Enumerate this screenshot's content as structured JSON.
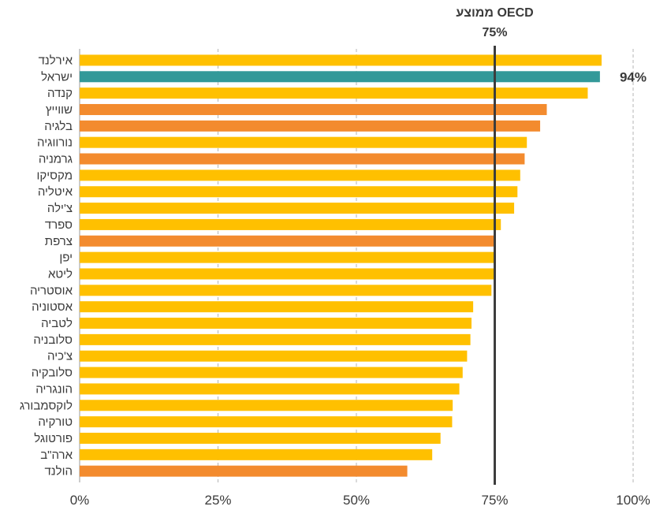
{
  "chart_data": {
    "type": "bar",
    "orientation": "horizontal",
    "categories": [
      "אירלנד",
      "ישראל",
      "קנדה",
      "שווייץ",
      "בלגיה",
      "נורווגיה",
      "גרמניה",
      "מקסיקו",
      "איטליה",
      "צ'ילה",
      "ספרד",
      "צרפת",
      "יפן",
      "ליטא",
      "אוסטריה",
      "אסטוניה",
      "לטביה",
      "סלובניה",
      "צ'כיה",
      "סלובקיה",
      "הונגריה",
      "לוקסמבורג",
      "טורקיה",
      "פורטוגל",
      "ארה\"ב",
      "הולנד"
    ],
    "values": [
      94.3,
      94,
      91.8,
      84.4,
      83.2,
      80.8,
      80.4,
      79.6,
      79.1,
      78.5,
      76.1,
      75,
      75,
      75,
      74.4,
      71.1,
      70.8,
      70.6,
      70,
      69.2,
      68.6,
      67.4,
      67.3,
      65.2,
      63.7,
      59.2
    ],
    "colors": [
      "#ffc000",
      "#339999",
      "#ffc000",
      "#f38b2e",
      "#f38b2e",
      "#ffc000",
      "#f38b2e",
      "#ffc000",
      "#ffc000",
      "#ffc000",
      "#ffc000",
      "#f38b2e",
      "#ffc000",
      "#ffc000",
      "#ffc000",
      "#ffc000",
      "#ffc000",
      "#ffc000",
      "#ffc000",
      "#ffc000",
      "#ffc000",
      "#ffc000",
      "#ffc000",
      "#ffc000",
      "#ffc000",
      "#f38b2e"
    ],
    "xlim": [
      0,
      100
    ],
    "x_ticks": [
      0,
      25,
      50,
      75,
      100
    ],
    "x_tick_labels": [
      "0%",
      "25%",
      "50%",
      "75%",
      "100%"
    ],
    "grid": "vertical dashed",
    "reference_line": {
      "value": 75,
      "label_line1": "ממוצע OECD",
      "label_line2": "75%"
    },
    "data_labels": [
      {
        "category": "ישראל",
        "text": "94%"
      }
    ],
    "title": "",
    "xlabel": "",
    "ylabel": ""
  }
}
